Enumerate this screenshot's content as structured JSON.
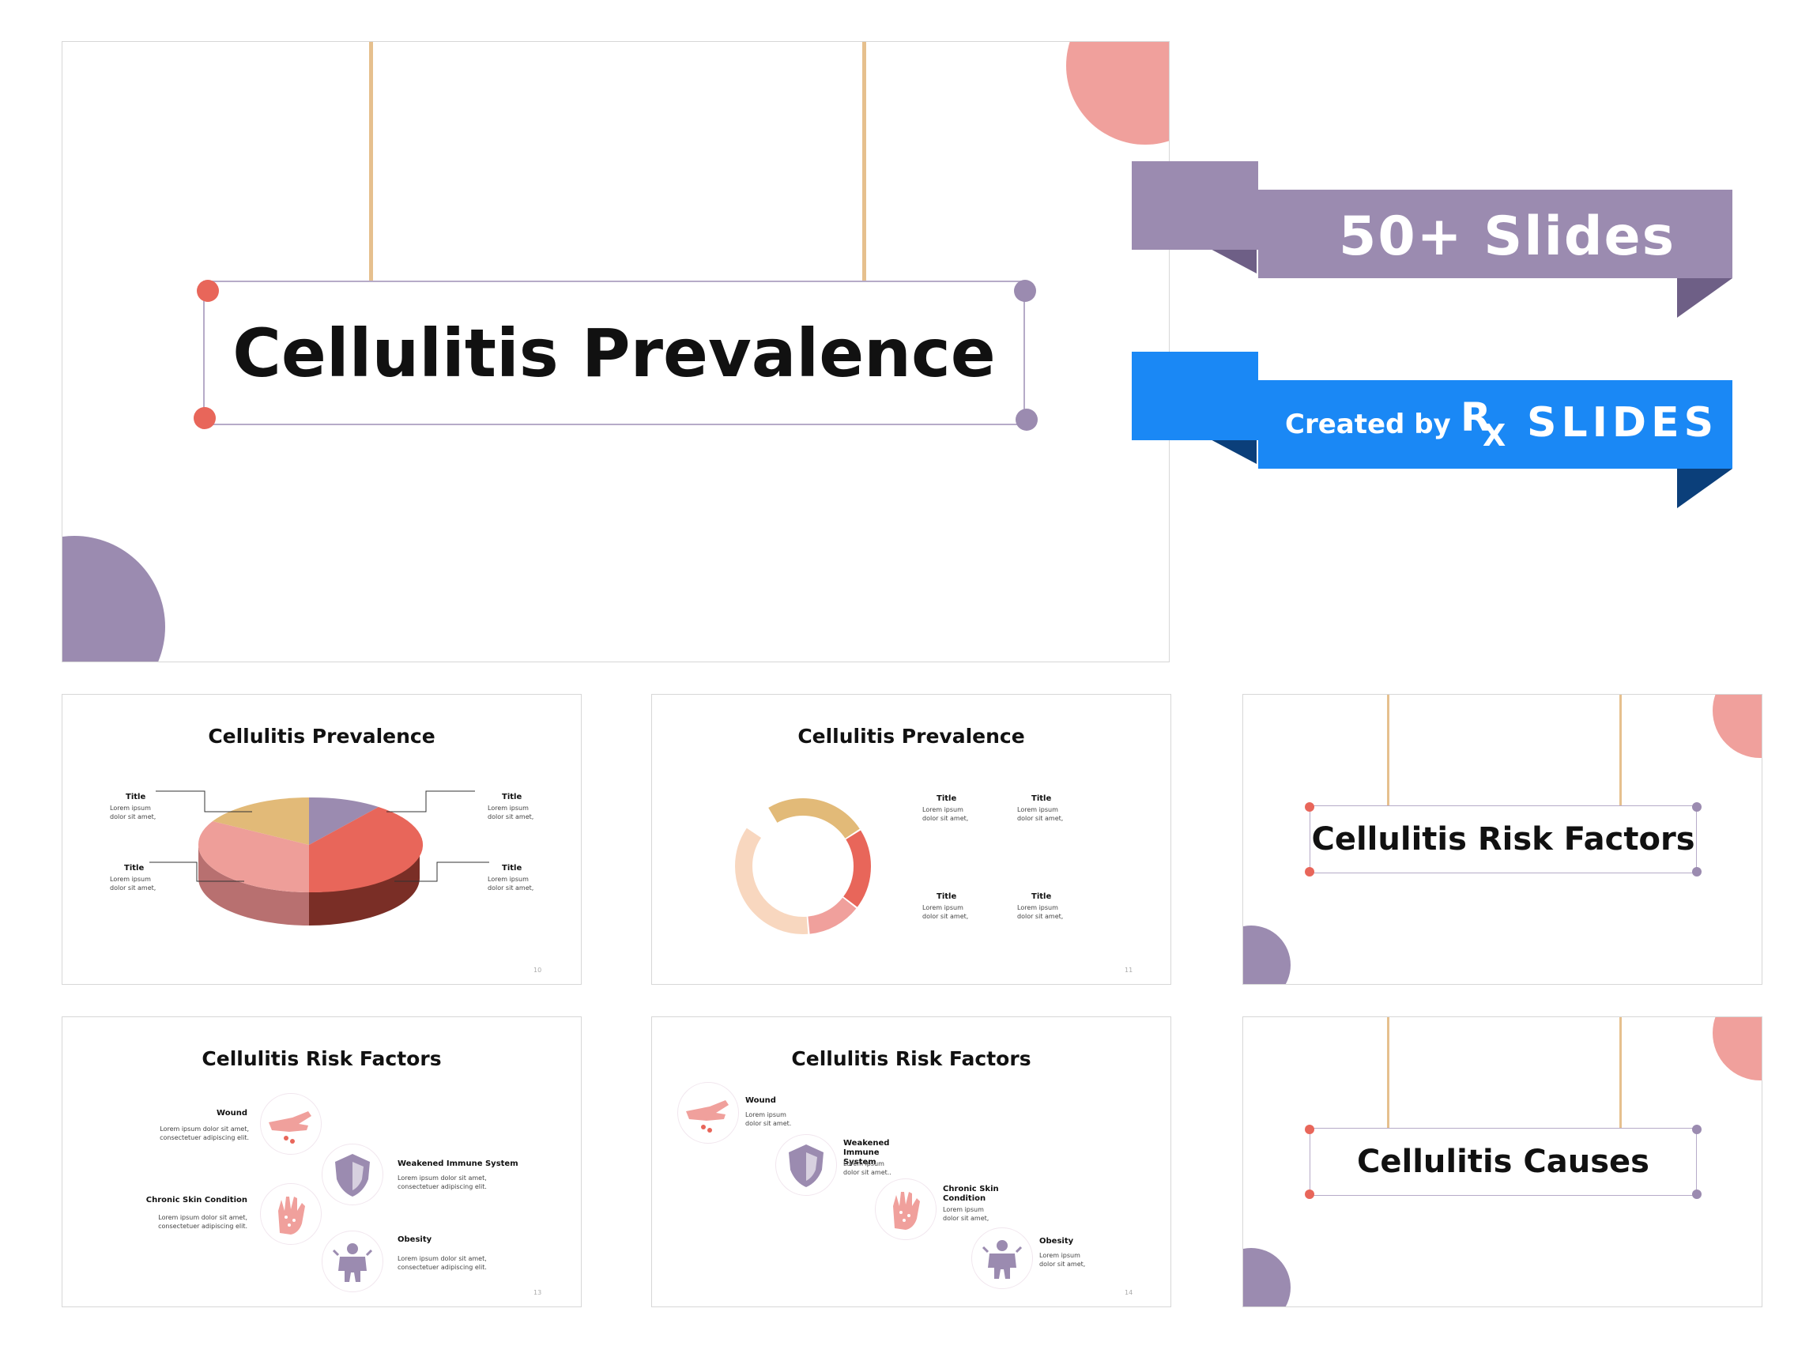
{
  "main_slide": {
    "title": "Cellulitis Prevalence"
  },
  "banner": {
    "slides_label": "50+ Slides",
    "created_by": "Created by",
    "brand_r": "R",
    "brand_x": "X",
    "brand_name": "SLIDES",
    "color_purple": "#9b8bb0",
    "color_blue": "#1a88f5"
  },
  "thumb_pie": {
    "title": "Cellulitis Prevalence",
    "labels": [
      {
        "title": "Title",
        "body": "Lorem ipsum dolor sit amet,"
      },
      {
        "title": "Title",
        "body": "Lorem ipsum dolor sit amet,"
      },
      {
        "title": "Title",
        "body": "Lorem ipsum dolor sit amet,"
      },
      {
        "title": "Title",
        "body": "Lorem ipsum dolor sit amet,"
      }
    ],
    "page": "10"
  },
  "thumb_donut": {
    "title": "Cellulitis Prevalence",
    "labels": [
      {
        "title": "Title",
        "body": "Lorem ipsum dolor sit amet,"
      },
      {
        "title": "Title",
        "body": "Lorem ipsum dolor sit amet,"
      },
      {
        "title": "Title",
        "body": "Lorem ipsum dolor sit amet,"
      },
      {
        "title": "Title",
        "body": "Lorem ipsum dolor sit amet,"
      }
    ],
    "page": "11"
  },
  "thumb_section1": {
    "title": "Cellulitis Risk Factors"
  },
  "thumb_risk1": {
    "title": "Cellulitis Risk Factors",
    "items": [
      {
        "title": "Wound",
        "body": "Lorem ipsum dolor sit amet, consectetuer adipiscing elit."
      },
      {
        "title": "Weakened Immune System",
        "body": "Lorem ipsum dolor sit amet, consectetuer adipiscing elit."
      },
      {
        "title": "Chronic Skin Condition",
        "body": "Lorem ipsum dolor sit amet, consectetuer adipiscing elit."
      },
      {
        "title": "Obesity",
        "body": "Lorem ipsum dolor sit amet, consectetuer adipiscing elit."
      }
    ],
    "page": "13"
  },
  "thumb_risk2": {
    "title": "Cellulitis Risk Factors",
    "items": [
      {
        "title": "Wound",
        "body": "Lorem ipsum dolor sit amet."
      },
      {
        "title": "Weakened Immune System",
        "body": "Lorem ipsum dolor sit amet.."
      },
      {
        "title": "Chronic Skin Condition",
        "body": "Lorem ipsum dolor sit amet,"
      },
      {
        "title": "Obesity",
        "body": "Lorem ipsum dolor sit amet,"
      }
    ],
    "page": "14"
  },
  "thumb_section2": {
    "title": "Cellulitis Causes"
  },
  "colors": {
    "coral": "#e8665a",
    "salmon": "#f0a09c",
    "lavender": "#9b8bb0",
    "tan": "#e2ba78",
    "peach": "#f8d7bf",
    "rope": "#e6c08e"
  }
}
